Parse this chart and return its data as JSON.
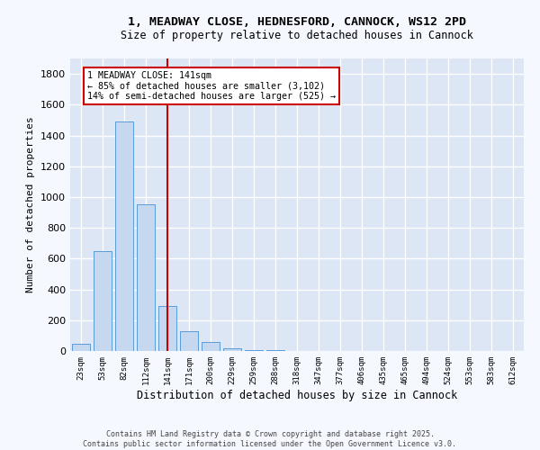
{
  "title_line1": "1, MEADWAY CLOSE, HEDNESFORD, CANNOCK, WS12 2PD",
  "title_line2": "Size of property relative to detached houses in Cannock",
  "xlabel": "Distribution of detached houses by size in Cannock",
  "ylabel": "Number of detached properties",
  "categories": [
    "23sqm",
    "53sqm",
    "82sqm",
    "112sqm",
    "141sqm",
    "171sqm",
    "200sqm",
    "229sqm",
    "259sqm",
    "288sqm",
    "318sqm",
    "347sqm",
    "377sqm",
    "406sqm",
    "435sqm",
    "465sqm",
    "494sqm",
    "524sqm",
    "553sqm",
    "583sqm",
    "612sqm"
  ],
  "values": [
    45,
    650,
    1490,
    955,
    295,
    130,
    60,
    20,
    8,
    3,
    2,
    1,
    1,
    0,
    0,
    0,
    0,
    0,
    0,
    0,
    0
  ],
  "bar_color": "#c5d8f0",
  "bar_edge_color": "#5b9bd5",
  "vline_x_index": 4,
  "vline_color": "#cc0000",
  "annotation_text": "1 MEADWAY CLOSE: 141sqm\n← 85% of detached houses are smaller (3,102)\n14% of semi-detached houses are larger (525) →",
  "annotation_box_color": "#ffffff",
  "annotation_box_edge_color": "#cc0000",
  "ylim": [
    0,
    1900
  ],
  "yticks": [
    0,
    200,
    400,
    600,
    800,
    1000,
    1200,
    1400,
    1600,
    1800
  ],
  "background_color": "#dce6f5",
  "fig_background_color": "#f5f8ff",
  "grid_color": "#ffffff",
  "footer_line1": "Contains HM Land Registry data © Crown copyright and database right 2025.",
  "footer_line2": "Contains public sector information licensed under the Open Government Licence v3.0."
}
